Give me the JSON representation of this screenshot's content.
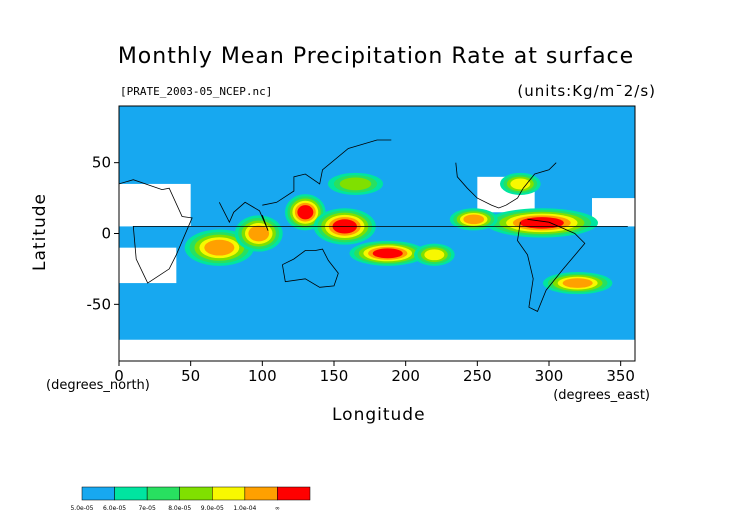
{
  "chart_data": {
    "type": "heatmap",
    "title": "Monthly Mean Precipitation Rate at surface",
    "subtitle": "[PRATE_2003-05_NCEP.nc]",
    "units": "(units:Kg/m¯2/s)",
    "xlabel": "Longitude",
    "ylabel": "Latitude",
    "x_unit_label": "(degrees_north)",
    "y_unit_label": "(degrees_east)",
    "xlim": [
      0,
      360
    ],
    "ylim": [
      -90,
      90
    ],
    "x_ticks": [
      "0",
      "50",
      "100",
      "150",
      "200",
      "250",
      "300",
      "350"
    ],
    "y_ticks": [
      "50",
      "0",
      "-50"
    ],
    "colorbar": {
      "labels": [
        "5.0e-05",
        "6.0e-05",
        "7e-05",
        "8.0e-05",
        "9.0e-05",
        "1.0e-04",
        "∞"
      ],
      "colors": [
        "#17a8f0",
        "#00e5a0",
        "#28e060",
        "#80e000",
        "#f8f800",
        "#ffa000",
        "#ff0000"
      ],
      "below_color": "#ffffff"
    },
    "regions": [
      {
        "lon": [
          120,
          140
        ],
        "lat": [
          5,
          25
        ],
        "level": 6
      },
      {
        "lon": [
          140,
          175
        ],
        "lat": [
          -5,
          15
        ],
        "level": 6
      },
      {
        "lon": [
          165,
          210
        ],
        "lat": [
          -20,
          -8
        ],
        "level": 6
      },
      {
        "lon": [
          260,
          330
        ],
        "lat": [
          0,
          15
        ],
        "level": 6
      },
      {
        "lon": [
          235,
          260
        ],
        "lat": [
          5,
          15
        ],
        "level": 5
      },
      {
        "lon": [
          50,
          90
        ],
        "lat": [
          -20,
          0
        ],
        "level": 5
      },
      {
        "lon": [
          85,
          110
        ],
        "lat": [
          -10,
          10
        ],
        "level": 5
      },
      {
        "lon": [
          210,
          230
        ],
        "lat": [
          -20,
          -10
        ],
        "level": 4
      },
      {
        "lon": [
          300,
          340
        ],
        "lat": [
          -40,
          -30
        ],
        "level": 5
      },
      {
        "lon": [
          270,
          290
        ],
        "lat": [
          30,
          40
        ],
        "level": 4
      },
      {
        "lon": [
          150,
          180
        ],
        "lat": [
          30,
          40
        ],
        "level": 3
      }
    ],
    "dry_regions": [
      {
        "lon": [
          0,
          50
        ],
        "lat": [
          5,
          35
        ]
      },
      {
        "lon": [
          330,
          360
        ],
        "lat": [
          5,
          25
        ]
      },
      {
        "lon": [
          0,
          40
        ],
        "lat": [
          -35,
          -10
        ]
      },
      {
        "lon": [
          250,
          290
        ],
        "lat": [
          15,
          40
        ]
      },
      {
        "lon": [
          0,
          360
        ],
        "lat": [
          -90,
          -75
        ]
      }
    ]
  }
}
